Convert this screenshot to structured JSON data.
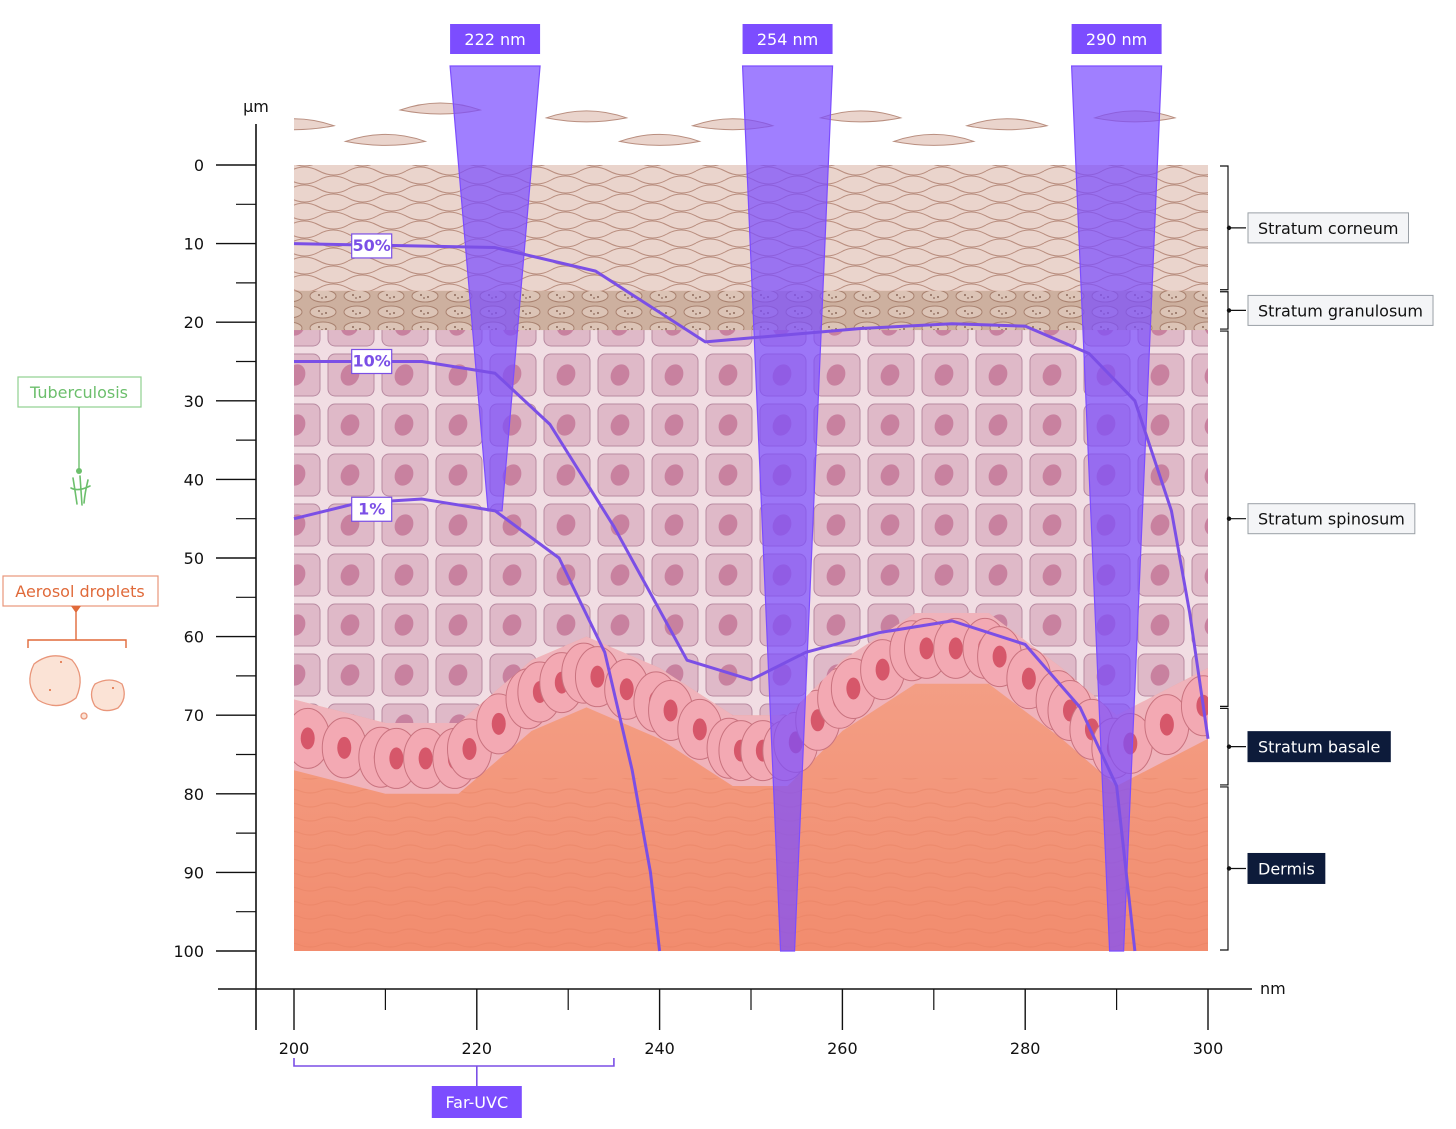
{
  "axes": {
    "y_unit": "µm",
    "x_unit": "nm",
    "y_ticks": [
      "0",
      "10",
      "20",
      "30",
      "40",
      "50",
      "60",
      "70",
      "80",
      "90",
      "100"
    ],
    "x_ticks": [
      "200",
      "220",
      "240",
      "260",
      "280",
      "300"
    ]
  },
  "beams": [
    {
      "label": "222 nm",
      "wavelength": 222,
      "depth_um": 44
    },
    {
      "label": "254 nm",
      "wavelength": 254,
      "depth_um": 100
    },
    {
      "label": "290 nm",
      "wavelength": 290,
      "depth_um": 100
    }
  ],
  "curves": [
    {
      "label": "50%",
      "points": [
        [
          200,
          10
        ],
        [
          222,
          10.5
        ],
        [
          233,
          13.5
        ],
        [
          245,
          22.5
        ],
        [
          250,
          22
        ],
        [
          262,
          20.8
        ],
        [
          272,
          20.2
        ],
        [
          280,
          20.5
        ],
        [
          287,
          24
        ],
        [
          292,
          30
        ],
        [
          296,
          44
        ],
        [
          298,
          57
        ],
        [
          300,
          73
        ]
      ]
    },
    {
      "label": "10%",
      "points": [
        [
          200,
          25
        ],
        [
          214,
          25
        ],
        [
          222,
          26.5
        ],
        [
          228,
          33
        ],
        [
          235,
          46
        ],
        [
          243,
          63
        ],
        [
          250,
          65.5
        ],
        [
          256,
          62
        ],
        [
          264,
          59.5
        ],
        [
          272,
          58
        ],
        [
          280,
          61
        ],
        [
          286,
          69
        ],
        [
          290,
          79
        ],
        [
          292,
          100
        ]
      ]
    },
    {
      "label": "1%",
      "points": [
        [
          200,
          45
        ],
        [
          207,
          43
        ],
        [
          214,
          42.5
        ],
        [
          222,
          44
        ],
        [
          229,
          50
        ],
        [
          234,
          62
        ],
        [
          237,
          77
        ],
        [
          239,
          90
        ],
        [
          240,
          100
        ]
      ]
    }
  ],
  "layers": [
    {
      "name": "Stratum corneum",
      "range": [
        0,
        16
      ],
      "dark": false
    },
    {
      "name": "Stratum granulosum",
      "range": [
        16,
        21
      ],
      "dark": false
    },
    {
      "name": "Stratum spinosum",
      "range": [
        21,
        69
      ],
      "dark": false
    },
    {
      "name": "Stratum basale",
      "range": [
        69,
        79
      ],
      "dark": true
    },
    {
      "name": "Dermis",
      "range": [
        79,
        100
      ],
      "dark": true
    }
  ],
  "far_uvc": {
    "label": "Far-UVC",
    "range": [
      200,
      235
    ]
  },
  "pathogens": {
    "tuberculosis": "Tuberculosis",
    "aerosol": "Aerosol droplets"
  },
  "colors": {
    "beam": "#7c4dff",
    "curve": "#7b4fe6",
    "tuberculosis": "#6cbf6c",
    "aerosol": "#e06a3a",
    "label_dark": "#0d1b3a"
  }
}
